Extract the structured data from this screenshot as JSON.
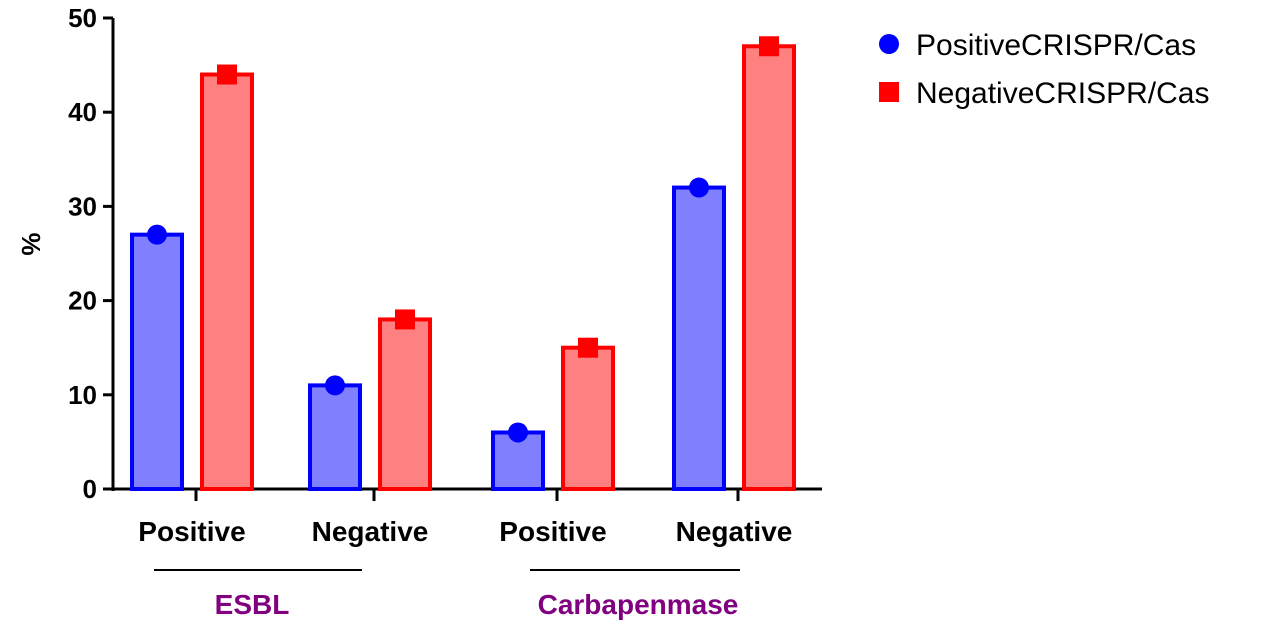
{
  "chart_data": {
    "type": "bar",
    "categories": [
      "Positive",
      "Negative",
      "Positive",
      "Negative"
    ],
    "groups": [
      {
        "label": "ESBL",
        "categories": [
          0,
          1
        ]
      },
      {
        "label": "Carbapenmase",
        "categories": [
          2,
          3
        ]
      }
    ],
    "series": [
      {
        "name": "PositiveCRISPR/Cas",
        "values": [
          27,
          11,
          6,
          32
        ],
        "color": "#0000ff",
        "fill": "#8080ff",
        "marker": "circle"
      },
      {
        "name": "NegativeCRISPR/Cas",
        "values": [
          44,
          18,
          15,
          47
        ],
        "color": "#ff0000",
        "fill": "#ff8080",
        "marker": "square"
      }
    ],
    "ylabel": "%",
    "ylim": [
      0,
      50
    ],
    "yticks": [
      0,
      10,
      20,
      30,
      40,
      50
    ],
    "grid": false,
    "legend_position": "top-right",
    "group_label_color": "#800080"
  }
}
